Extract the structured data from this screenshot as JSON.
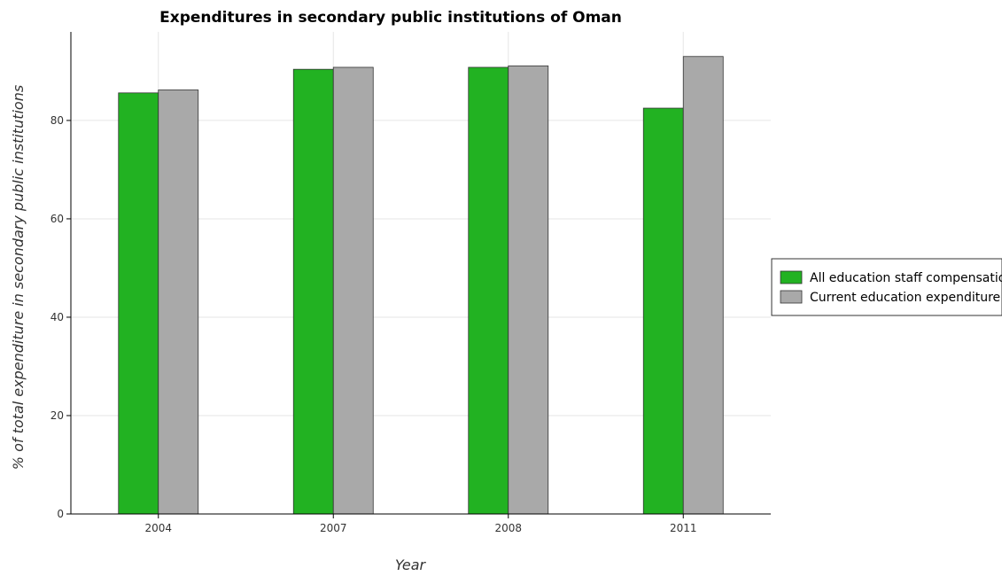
{
  "chart_data": {
    "type": "bar",
    "title": "Expenditures in secondary public institutions of Oman",
    "xlabel": "Year",
    "ylabel": "% of total expenditure in secondary public institutions",
    "categories": [
      "2004",
      "2007",
      "2008",
      "2011"
    ],
    "ylim": [
      0,
      98
    ],
    "yticks": [
      0,
      20,
      40,
      60,
      80
    ],
    "grid": true,
    "legend_position": "right",
    "series": [
      {
        "name": "All education staff compensation",
        "color": "#22b222",
        "values": [
          85.6,
          90.4,
          90.8,
          82.5
        ]
      },
      {
        "name": "Current education expenditure",
        "color": "#a9a9a9",
        "values": [
          86.2,
          90.8,
          91.1,
          93.0
        ]
      }
    ]
  }
}
